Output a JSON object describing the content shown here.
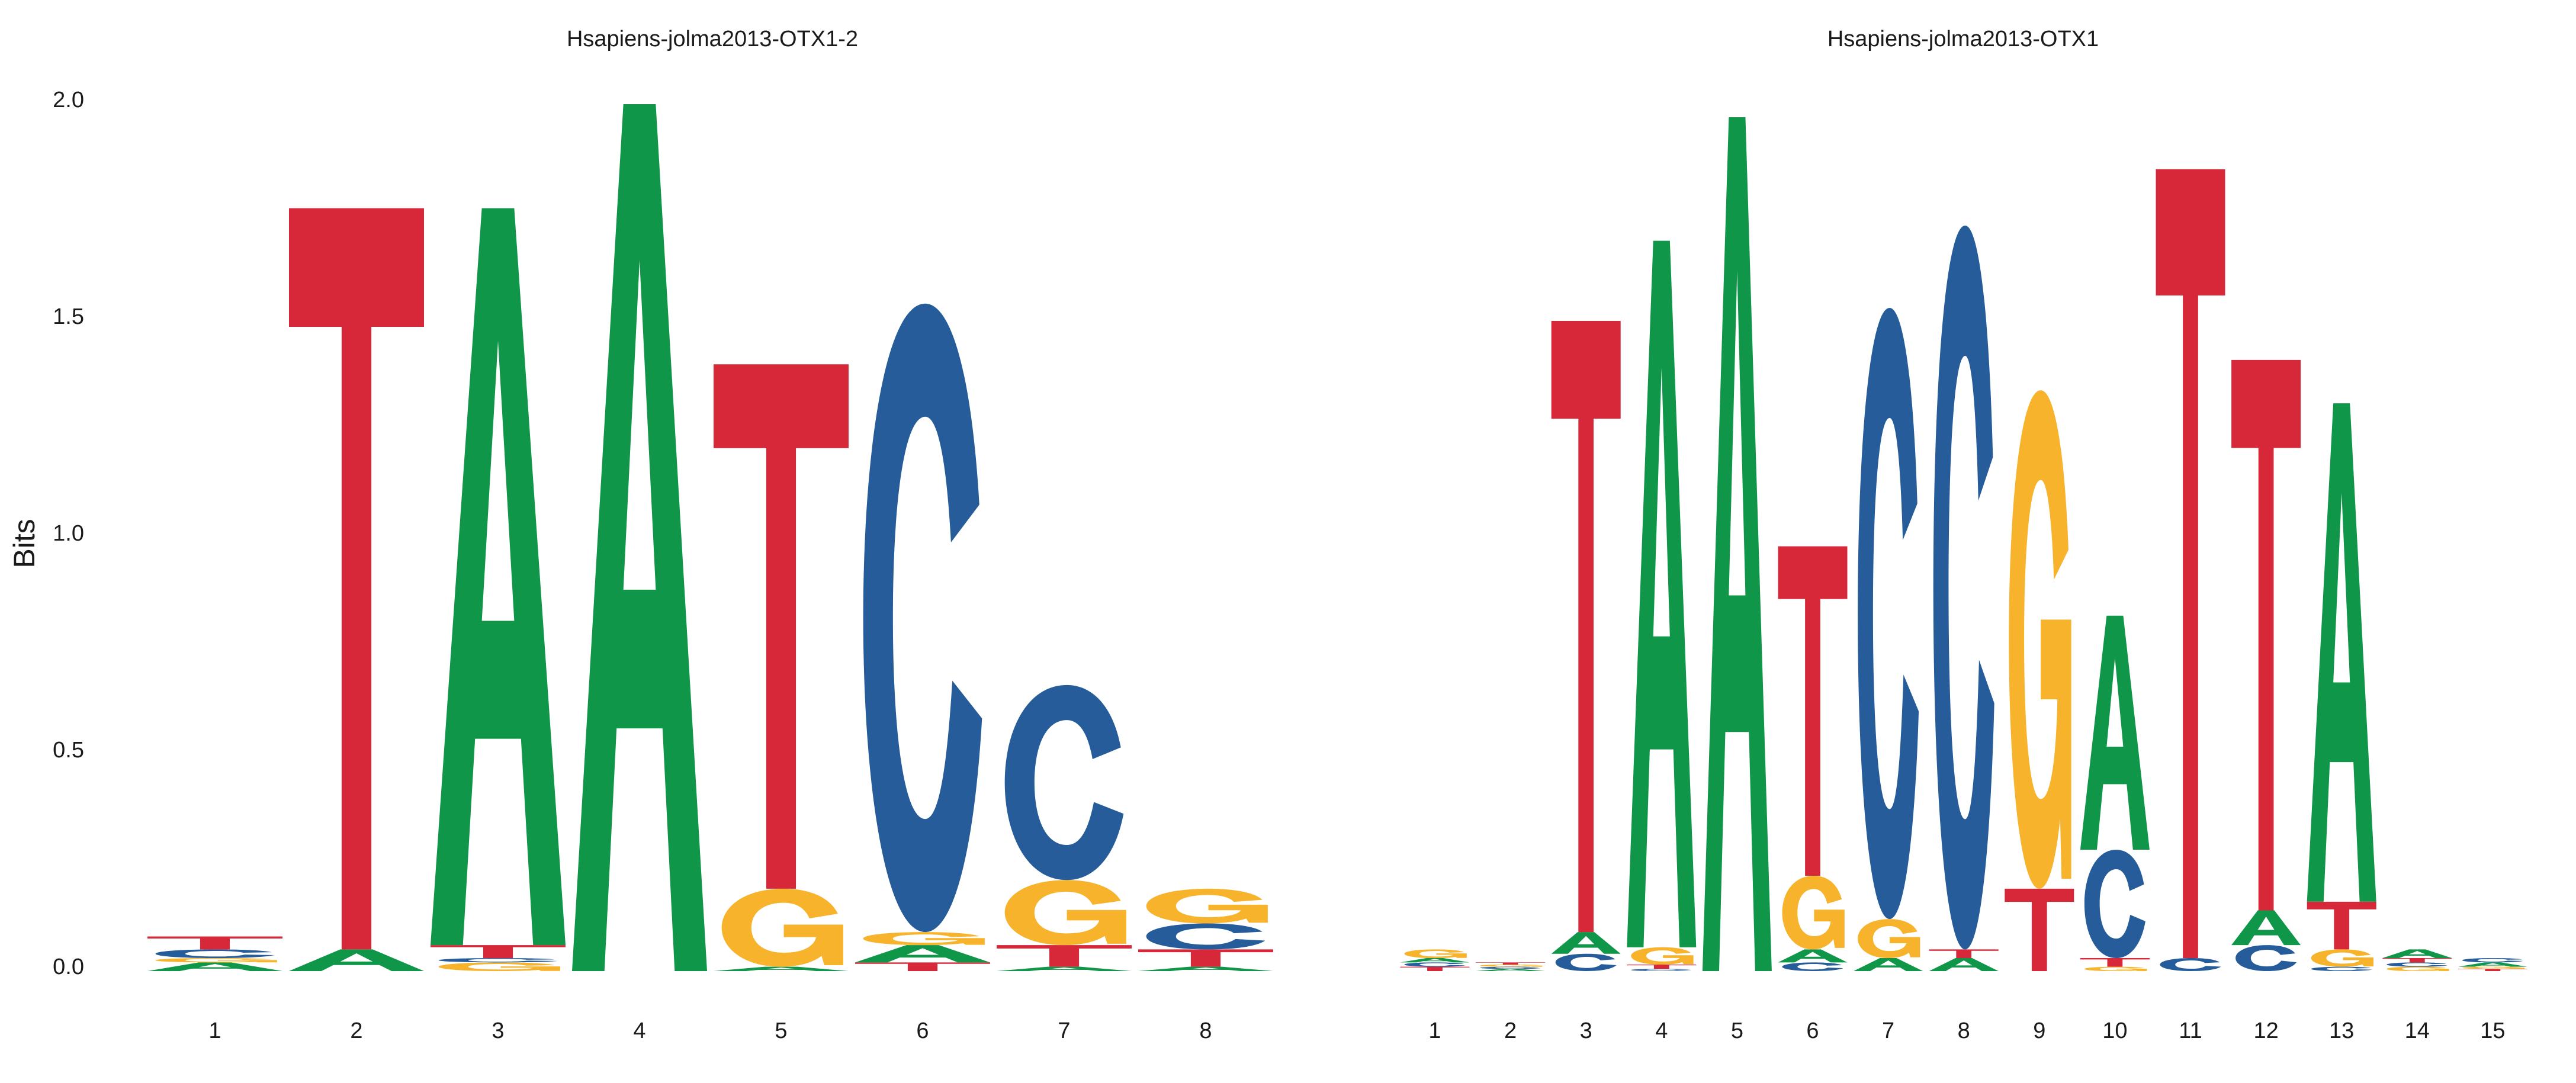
{
  "colors": {
    "A": "#109648",
    "C": "#255C99",
    "G": "#F7B32B",
    "T": "#D62839"
  },
  "chart_data": [
    {
      "type": "sequence-logo",
      "title": "Hsapiens-jolma2013-OTX1-2",
      "ylabel": "Bits",
      "ylim": [
        0,
        2
      ],
      "yticks": [
        "0.0",
        "0.5",
        "1.0",
        "1.5",
        "2.0"
      ],
      "positions": [
        "1",
        "2",
        "3",
        "4",
        "5",
        "6",
        "7",
        "8"
      ],
      "stacks": [
        [
          [
            "A",
            0.02
          ],
          [
            "G",
            0.01
          ],
          [
            "C",
            0.02
          ],
          [
            "T",
            0.03
          ]
        ],
        [
          [
            "A",
            0.05
          ],
          [
            "T",
            1.71
          ]
        ],
        [
          [
            "G",
            0.02
          ],
          [
            "C",
            0.01
          ],
          [
            "T",
            0.03
          ],
          [
            "A",
            1.7
          ]
        ],
        [
          [
            "A",
            2.0
          ]
        ],
        [
          [
            "A",
            0.01
          ],
          [
            "G",
            0.18
          ],
          [
            "T",
            1.21
          ]
        ],
        [
          [
            "T",
            0.02
          ],
          [
            "A",
            0.04
          ],
          [
            "G",
            0.03
          ],
          [
            "C",
            1.45
          ]
        ],
        [
          [
            "A",
            0.01
          ],
          [
            "T",
            0.05
          ],
          [
            "G",
            0.15
          ],
          [
            "C",
            0.45
          ]
        ],
        [
          [
            "A",
            0.01
          ],
          [
            "T",
            0.04
          ],
          [
            "C",
            0.06
          ],
          [
            "G",
            0.08
          ]
        ]
      ]
    },
    {
      "type": "sequence-logo",
      "title": "Hsapiens-jolma2013-OTX1",
      "ylabel": "",
      "ylim": [
        0,
        2
      ],
      "yticks": [],
      "positions": [
        "1",
        "2",
        "3",
        "4",
        "5",
        "6",
        "7",
        "8",
        "9",
        "10",
        "11",
        "12",
        "13",
        "14",
        "15"
      ],
      "stacks": [
        [
          [
            "T",
            0.01
          ],
          [
            "C",
            0.01
          ],
          [
            "A",
            0.01
          ],
          [
            "G",
            0.02
          ]
        ],
        [
          [
            "A",
            0.005
          ],
          [
            "C",
            0.005
          ],
          [
            "G",
            0.005
          ],
          [
            "T",
            0.005
          ]
        ],
        [
          [
            "C",
            0.04
          ],
          [
            "A",
            0.05
          ],
          [
            "T",
            1.41
          ]
        ],
        [
          [
            "C",
            0.005
          ],
          [
            "T",
            0.01
          ],
          [
            "G",
            0.04
          ],
          [
            "A",
            1.63
          ]
        ],
        [
          [
            "A",
            1.97
          ]
        ],
        [
          [
            "C",
            0.02
          ],
          [
            "A",
            0.03
          ],
          [
            "G",
            0.17
          ],
          [
            "T",
            0.76
          ]
        ],
        [
          [
            "A",
            0.03
          ],
          [
            "G",
            0.09
          ],
          [
            "C",
            1.41
          ]
        ],
        [
          [
            "A",
            0.03
          ],
          [
            "T",
            0.02
          ],
          [
            "C",
            1.67
          ]
        ],
        [
          [
            "T",
            0.19
          ],
          [
            "G",
            1.15
          ]
        ],
        [
          [
            "G",
            0.01
          ],
          [
            "T",
            0.02
          ],
          [
            "C",
            0.25
          ],
          [
            "A",
            0.54
          ]
        ],
        [
          [
            "C",
            0.03
          ],
          [
            "T",
            1.82
          ]
        ],
        [
          [
            "C",
            0.06
          ],
          [
            "A",
            0.08
          ],
          [
            "T",
            1.27
          ]
        ],
        [
          [
            "C",
            0.01
          ],
          [
            "G",
            0.04
          ],
          [
            "T",
            0.11
          ],
          [
            "A",
            1.15
          ]
        ],
        [
          [
            "G",
            0.01
          ],
          [
            "C",
            0.01
          ],
          [
            "T",
            0.01
          ],
          [
            "A",
            0.02
          ]
        ],
        [
          [
            "T",
            0.005
          ],
          [
            "G",
            0.005
          ],
          [
            "A",
            0.01
          ],
          [
            "C",
            0.01
          ]
        ]
      ]
    }
  ]
}
